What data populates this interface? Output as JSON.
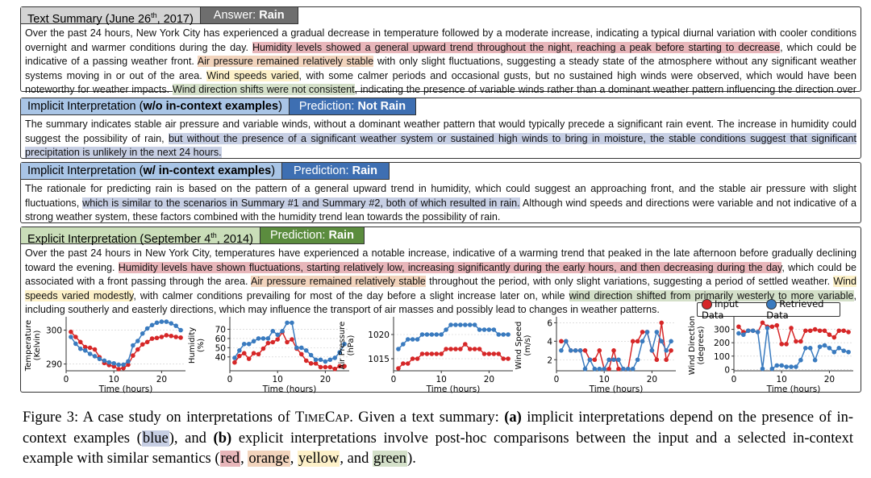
{
  "colors": {
    "red": "#d62728",
    "blue": "#3a7bbf",
    "summary_tab": "#d3d3d3",
    "answer_tab": "#6e6e6e",
    "implicit_tab": "#a9c5e6",
    "implicit_pred": "#3e6fb2",
    "explicit_tab": "#cadeb9",
    "explicit_pred": "#5b8c3e"
  },
  "summary": {
    "title_pre": "Text Summary (June 26",
    "title_sup": "th",
    "title_post": ", 2017)",
    "answer_label": "Answer: ",
    "answer": "Rain",
    "segments": [
      {
        "t": "Over the past 24 hours, New York City has experienced a gradual decrease in temperature followed by a moderate increase, indicating a typical diurnal variation with cooler conditions overnight and warmer conditions during the day. "
      },
      {
        "t": "Humidity levels showed a general upward trend throughout the night, reaching a peak before starting to decrease",
        "hl": "red"
      },
      {
        "t": ", which could be indicative of a passing weather front. "
      },
      {
        "t": "Air pressure remained relatively stable",
        "hl": "orange"
      },
      {
        "t": " with only slight fluctuations, suggesting a steady state of the atmosphere without any significant weather systems moving in or out of the area. "
      },
      {
        "t": "Wind speeds varied",
        "hl": "yellow"
      },
      {
        "t": ", with some calmer periods and occasional gusts, but no sustained high winds were observed, which would have been noteworthy for weather impacts. "
      },
      {
        "t": "Wind direction shifts were not consistent",
        "hl": "green"
      },
      {
        "t": ", indicating the presence of variable winds rather than a dominant weather pattern influencing the direction over the period."
      }
    ]
  },
  "implicit_wo": {
    "title_pre": "Implicit Interpretation (",
    "title_bold": "w/o in-context examples",
    "title_post": ")",
    "pred_label": "Prediction: ",
    "pred": "Not Rain",
    "segments": [
      {
        "t": "The summary indicates stable air pressure and variable winds, without a dominant weather pattern that would typically precede a significant rain event. The increase in humidity could suggest the possibility of rain, "
      },
      {
        "t": "but without the presence of a significant weather system or sustained high winds to bring in moisture, the stable conditions suggest that significant precipitation is unlikely in the next 24 hours.",
        "hl": "blue"
      }
    ]
  },
  "implicit_w": {
    "title_pre": "Implicit Interpretation (",
    "title_bold": "w/ in-context examples",
    "title_post": ")",
    "pred_label": "Prediction: ",
    "pred": "Rain",
    "segments": [
      {
        "t": "The rationale for predicting rain is based on the pattern of a general upward trend in humidity, which could suggest an approaching front, and the stable air pressure with slight fluctuations, "
      },
      {
        "t": "which is similar to the scenarios in Summary #1 and Summary #2, both of which resulted in rain.",
        "hl": "blue"
      },
      {
        "t": " Although wind speeds and directions were variable and not indicative of a strong weather system, these factors combined with the humidity trend lean towards the possibility of rain."
      }
    ]
  },
  "explicit": {
    "title_pre": "Explicit Interpretation (September 4",
    "title_sup": "th",
    "title_post": ", 2014)",
    "pred_label": "Prediction: ",
    "pred": "Rain",
    "segments": [
      {
        "t": "Over the past 24 hours in New York City, temperatures have experienced a notable increase, indicative of a warming trend that peaked in the late afternoon before gradually declining toward the evening. "
      },
      {
        "t": "Humidity levels have shown fluctuations, starting relatively low, increasing significantly during the early hours, and then decreasing during the day",
        "hl": "red"
      },
      {
        "t": ", which could be associated with a front passing through the area. "
      },
      {
        "t": "Air pressure remained relatively stable",
        "hl": "orange"
      },
      {
        "t": " throughout the period, with only slight variations, suggesting a period of settled weather. "
      },
      {
        "t": "Wind speeds varied modestly",
        "hl": "yellow"
      },
      {
        "t": ", with calmer conditions prevailing for most of the day before a slight increase later on, while "
      },
      {
        "t": "wind direction shifted from primarily westerly to more variable",
        "hl": "green"
      },
      {
        "t": ", including southerly and easterly directions, which may influence the transport of air masses and possibly lead to changes in weather patterns."
      }
    ]
  },
  "legend": {
    "input": "Input Data",
    "retrieved": "Retrieved Data"
  },
  "chart_data": [
    {
      "type": "line",
      "ylabel": [
        "Temperature",
        "(Kelvin)"
      ],
      "xlabel": "Time (hours)",
      "xlim": [
        0,
        25
      ],
      "xticks": [
        0,
        10,
        20
      ],
      "ylim": [
        288,
        303
      ],
      "yticks": [
        290,
        300
      ],
      "grid": true,
      "x": [
        1,
        2,
        3,
        4,
        5,
        6,
        7,
        8,
        9,
        10,
        11,
        12,
        13,
        14,
        15,
        16,
        17,
        18,
        19,
        20,
        21,
        22,
        23,
        24
      ],
      "series": [
        {
          "name": "Input Data",
          "color": "#d62728",
          "values": [
            299.5,
            298,
            296.5,
            295,
            294.8,
            294.3,
            292,
            290.3,
            289.7,
            289.3,
            288.5,
            288.8,
            289.8,
            292.5,
            294.3,
            295.8,
            296.5,
            297.5,
            297.7,
            298,
            298.5,
            298.3,
            298,
            297.8
          ]
        },
        {
          "name": "Retrieved Data",
          "color": "#3a7bbf",
          "values": [
            298,
            296,
            294.5,
            294,
            293,
            292.3,
            291.5,
            291,
            290.5,
            290.2,
            289.8,
            289.8,
            290.8,
            295.5,
            296.8,
            299,
            300.5,
            301.5,
            302.2,
            302.5,
            302.5,
            302,
            301.3,
            300
          ]
        }
      ]
    },
    {
      "type": "line",
      "ylabel": [
        "Humidity",
        "(%)"
      ],
      "xlabel": "Time (hours)",
      "xlim": [
        0,
        25
      ],
      "xticks": [
        0,
        10,
        20
      ],
      "ylim": [
        25,
        80
      ],
      "yticks": [
        40,
        50,
        60,
        70
      ],
      "grid": true,
      "x": [
        1,
        2,
        3,
        4,
        5,
        6,
        7,
        8,
        9,
        10,
        11,
        12,
        13,
        14,
        15,
        16,
        17,
        18,
        19,
        20,
        21,
        22,
        23,
        24
      ],
      "series": [
        {
          "name": "Input Data",
          "color": "#d62728",
          "values": [
            34,
            41,
            44,
            38,
            44,
            43,
            49,
            55,
            56,
            59,
            67,
            56,
            59,
            49,
            43,
            36,
            33,
            33,
            29,
            29,
            29,
            27,
            30,
            30
          ]
        },
        {
          "name": "Retrieved Data",
          "color": "#3a7bbf",
          "values": [
            39,
            47,
            54,
            54,
            57,
            60,
            60,
            60,
            68,
            64,
            68,
            77,
            77,
            50,
            50,
            47,
            42,
            37,
            37,
            35,
            37,
            39,
            45,
            54
          ]
        }
      ]
    },
    {
      "type": "line",
      "ylabel": [
        "Air Pressure",
        "(hPa)"
      ],
      "xlabel": "Time (hours)",
      "xlim": [
        0,
        25
      ],
      "xticks": [
        0,
        10,
        20
      ],
      "ylim": [
        1012.5,
        1023
      ],
      "yticks": [
        1015,
        1020
      ],
      "grid": true,
      "x": [
        1,
        2,
        3,
        4,
        5,
        6,
        7,
        8,
        9,
        10,
        11,
        12,
        13,
        14,
        15,
        16,
        17,
        18,
        19,
        20,
        21,
        22,
        23,
        24
      ],
      "series": [
        {
          "name": "Input Data",
          "color": "#d62728",
          "values": [
            1013,
            1014,
            1014,
            1015,
            1015,
            1016,
            1016,
            1016,
            1016,
            1016,
            1017,
            1017,
            1017,
            1017,
            1018,
            1017,
            1017,
            1017,
            1016,
            1016,
            1016,
            1016,
            1015,
            1015
          ]
        },
        {
          "name": "Retrieved Data",
          "color": "#3a7bbf",
          "values": [
            1017,
            1018,
            1019,
            1019,
            1019,
            1020,
            1020,
            1020,
            1020,
            1020,
            1021,
            1022,
            1022,
            1022,
            1022,
            1022,
            1022,
            1021,
            1021,
            1021,
            1021,
            1020,
            1020,
            1020
          ]
        }
      ]
    },
    {
      "type": "line",
      "ylabel": [
        "Wind Speed",
        "(m/s)"
      ],
      "xlabel": "Time (hours)",
      "xlim": [
        0,
        25
      ],
      "xticks": [
        0,
        10,
        20
      ],
      "ylim": [
        0.8,
        6.3
      ],
      "yticks": [
        2,
        4,
        6
      ],
      "grid": true,
      "x": [
        1,
        2,
        3,
        4,
        5,
        6,
        7,
        8,
        9,
        10,
        11,
        12,
        13,
        14,
        15,
        16,
        17,
        18,
        19,
        20,
        21,
        22,
        23,
        24
      ],
      "series": [
        {
          "name": "Input Data",
          "color": "#d62728",
          "values": [
            4,
            4,
            3,
            3,
            3,
            3,
            2,
            2,
            3,
            1,
            1,
            3,
            1,
            1,
            1,
            4,
            4,
            5,
            5,
            3,
            2,
            6,
            2,
            3
          ]
        },
        {
          "name": "Retrieved Data",
          "color": "#3a7bbf",
          "values": [
            3,
            4,
            3,
            3,
            3,
            1,
            2,
            1,
            1,
            1,
            2,
            2,
            2,
            1,
            1,
            1,
            2,
            4,
            5,
            3,
            5,
            4,
            3,
            4
          ]
        }
      ]
    },
    {
      "type": "line",
      "ylabel": [
        "Wind Direction",
        "(degrees)"
      ],
      "xlabel": "Time (hours)",
      "xlim": [
        0,
        25
      ],
      "xticks": [
        0,
        10,
        20
      ],
      "ylim": [
        -10,
        370
      ],
      "yticks": [
        0,
        100,
        200,
        300
      ],
      "grid": true,
      "x": [
        1,
        2,
        3,
        4,
        5,
        6,
        7,
        8,
        9,
        10,
        11,
        12,
        13,
        14,
        15,
        16,
        17,
        18,
        19,
        20,
        21,
        22,
        23,
        24
      ],
      "series": [
        {
          "name": "Input Data",
          "color": "#d62728",
          "values": [
            320,
            280,
            290,
            290,
            280,
            350,
            320,
            320,
            330,
            190,
            190,
            310,
            210,
            210,
            290,
            290,
            300,
            290,
            290,
            260,
            240,
            290,
            290,
            280
          ]
        },
        {
          "name": "Retrieved Data",
          "color": "#3a7bbf",
          "values": [
            270,
            260,
            290,
            290,
            280,
            5,
            310,
            5,
            30,
            30,
            20,
            20,
            20,
            70,
            160,
            160,
            70,
            170,
            180,
            160,
            130,
            160,
            140,
            130
          ]
        }
      ]
    }
  ],
  "caption": {
    "segments": [
      {
        "t": "Figure 3: A case study on interpretations of T"
      },
      {
        "t": "IME",
        "sc": true
      },
      {
        "t": "C"
      },
      {
        "t": "AP",
        "sc": true
      },
      {
        "t": ". Given a text summary: "
      },
      {
        "t": "(a)",
        "b": true
      },
      {
        "t": " implicit interpretations depend on the presence of in-context examples ("
      },
      {
        "t": "blue",
        "hl": "blue"
      },
      {
        "t": "), and "
      },
      {
        "t": "(b)",
        "b": true
      },
      {
        "t": " explicit interpretations involve post-hoc comparisons between the input and a selected in-context example with similar semantics ("
      },
      {
        "t": "red",
        "hl": "red"
      },
      {
        "t": ", "
      },
      {
        "t": "orange",
        "hl": "orange"
      },
      {
        "t": ", "
      },
      {
        "t": "yellow",
        "hl": "yellow"
      },
      {
        "t": ", and "
      },
      {
        "t": "green",
        "hl": "green"
      },
      {
        "t": ")."
      }
    ]
  }
}
